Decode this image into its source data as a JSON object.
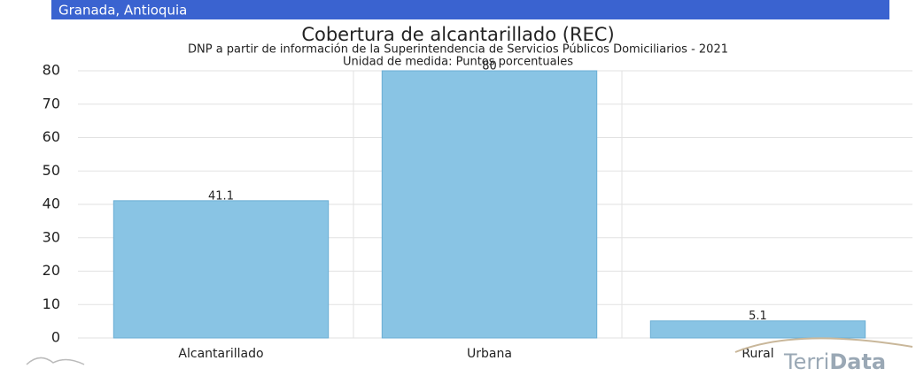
{
  "header": "Granada, Antioquia",
  "chart_data": {
    "type": "bar",
    "title": "Cobertura de alcantarillado (REC)",
    "subtitle": "DNP a partir de información de la Superintendencia de Servicios Públicos Domiciliarios - 2021",
    "y_label": "Unidad de medida: Puntos porcentuales",
    "categories": [
      "Alcantarillado",
      "Urbana",
      "Rural"
    ],
    "values": [
      41.1,
      80,
      5.1
    ],
    "color": "#89c4e4",
    "ylim": [
      0,
      80
    ],
    "yticks": [
      0,
      10,
      20,
      30,
      40,
      50,
      60,
      70,
      80
    ],
    "grid": true
  },
  "logo": {
    "prefix": "Terri",
    "suffix": "Data"
  }
}
